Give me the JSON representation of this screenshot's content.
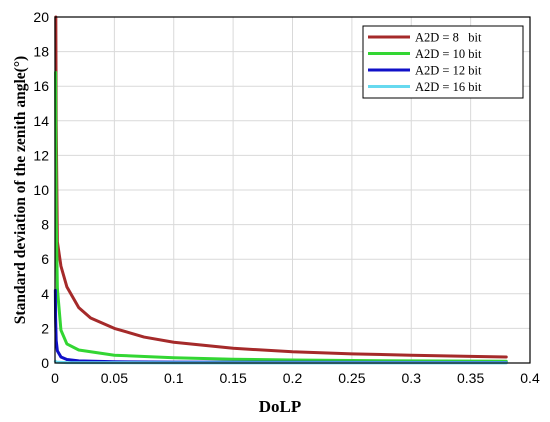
{
  "chart_data": {
    "type": "line",
    "title": "",
    "xlabel": "DoLP",
    "ylabel": "Standard deviation of the zenith angle(°)",
    "xlim": [
      0,
      0.4
    ],
    "ylim": [
      0,
      20
    ],
    "x_ticks": [
      "0",
      "0.05",
      "0.1",
      "0.15",
      "0.2",
      "0.25",
      "0.3",
      "0.35",
      "0.4"
    ],
    "y_ticks": [
      "0",
      "2",
      "4",
      "6",
      "8",
      "10",
      "12",
      "14",
      "16",
      "18",
      "20"
    ],
    "grid": true,
    "legend_position": "top-right",
    "series": [
      {
        "name": "A2D = 8   bit",
        "color": "#a52a2a",
        "x": [
          0.0007,
          0.001,
          0.002,
          0.005,
          0.01,
          0.02,
          0.03,
          0.05,
          0.075,
          0.1,
          0.15,
          0.2,
          0.25,
          0.3,
          0.35,
          0.38
        ],
        "y": [
          20,
          14.0,
          7.0,
          5.6,
          4.4,
          3.2,
          2.6,
          2.0,
          1.5,
          1.2,
          0.85,
          0.65,
          0.53,
          0.45,
          0.38,
          0.35
        ]
      },
      {
        "name": "A2D = 10 bit",
        "color": "#33d633",
        "x": [
          0.0005,
          0.001,
          0.002,
          0.005,
          0.01,
          0.02,
          0.05,
          0.1,
          0.15,
          0.2,
          0.3,
          0.38
        ],
        "y": [
          16.8,
          8.6,
          4.3,
          1.9,
          1.1,
          0.75,
          0.45,
          0.3,
          0.22,
          0.17,
          0.12,
          0.1
        ]
      },
      {
        "name": "A2D = 12 bit",
        "color": "#1010c8",
        "x": [
          0.0003,
          0.0005,
          0.001,
          0.002,
          0.005,
          0.01,
          0.02,
          0.05,
          0.1,
          0.2,
          0.38
        ],
        "y": [
          4.2,
          2.6,
          1.3,
          0.7,
          0.35,
          0.2,
          0.12,
          0.07,
          0.05,
          0.04,
          0.03
        ]
      },
      {
        "name": "A2D = 16 bit",
        "color": "#66d9ef",
        "x": [
          0.0003,
          0.001,
          0.01,
          0.1,
          0.2,
          0.38
        ],
        "y": [
          0.1,
          0.05,
          0.02,
          0.01,
          0.01,
          0.01
        ]
      }
    ]
  }
}
